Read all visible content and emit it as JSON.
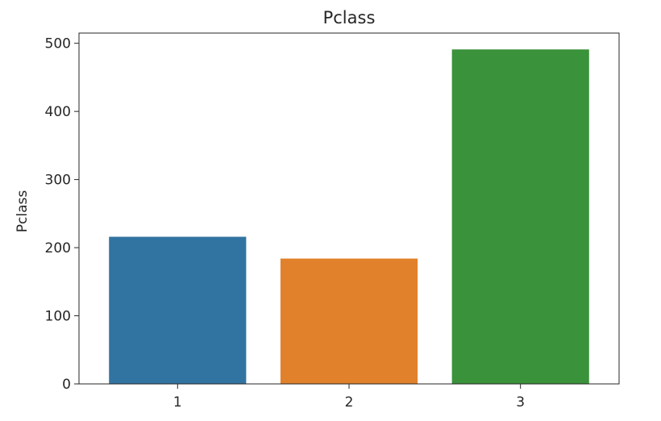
{
  "chart_data": {
    "type": "bar",
    "title": "Pclass",
    "xlabel": "",
    "ylabel": "Pclass",
    "categories": [
      "1",
      "2",
      "3"
    ],
    "values": [
      216,
      184,
      491
    ],
    "colors": [
      "#3274a1",
      "#e1812c",
      "#3a923a"
    ],
    "ylim": [
      0,
      515
    ],
    "yticks": [
      0,
      100,
      200,
      300,
      400,
      500
    ],
    "grid": false,
    "legend": "none"
  }
}
